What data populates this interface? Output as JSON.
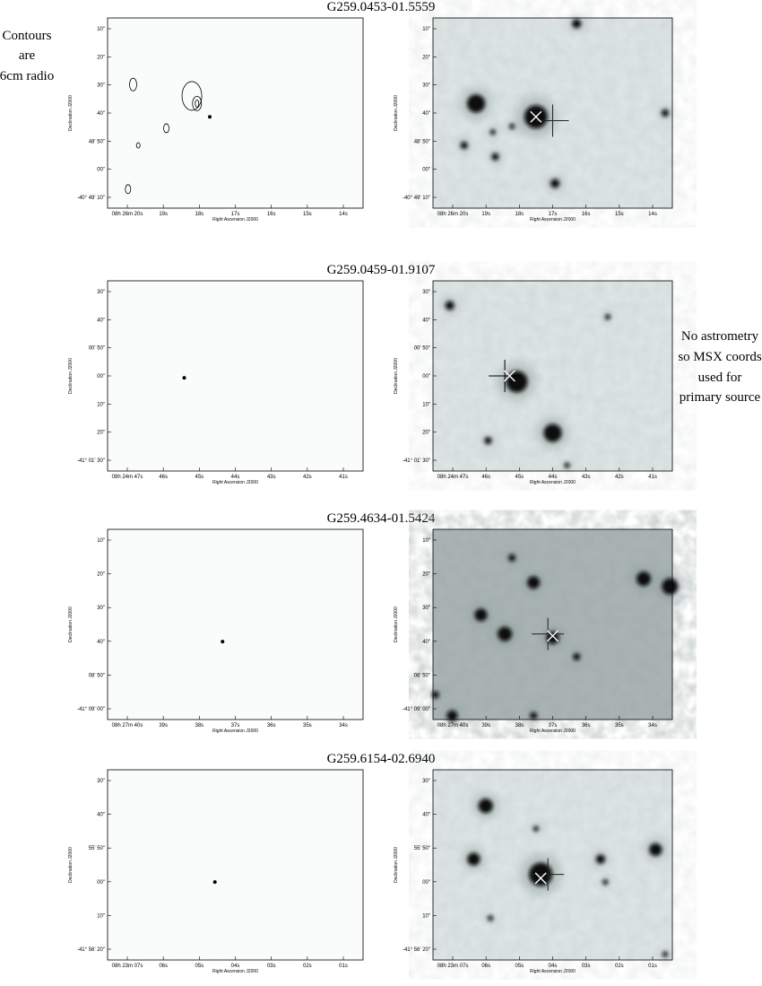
{
  "x_axis_label": "Right Ascension J2000",
  "y_axis_label": "Declination J2000",
  "side_notes": {
    "left": [
      "Contours",
      "are",
      "6cm radio"
    ],
    "right": [
      "No astrometry",
      "so MSX coords",
      "used for",
      "primary source"
    ]
  },
  "rows": [
    {
      "title": "G259.0453-01.5559",
      "yticks": [
        "10\"",
        "20\"",
        "30\"",
        "40\"",
        "48' 50\"",
        "00\"",
        "-40° 49' 10\""
      ],
      "xticks": [
        "08h 26m 20s",
        "19s",
        "18s",
        "17s",
        "16s",
        "15s",
        "14s"
      ]
    },
    {
      "title": "G259.0459-01.9107",
      "yticks": [
        "30\"",
        "40\"",
        "00' 50\"",
        "00\"",
        "10\"",
        "20\"",
        "-41° 01' 30\""
      ],
      "xticks": [
        "08h 24m 47s",
        "46s",
        "45s",
        "44s",
        "43s",
        "42s",
        "41s"
      ]
    },
    {
      "title": "G259.4634-01.5424",
      "yticks": [
        "10\"",
        "20\"",
        "30\"",
        "40\"",
        "08' 50\"",
        "-41° 09' 00\""
      ],
      "xticks": [
        "08h 27m 40s",
        "39s",
        "38s",
        "37s",
        "36s",
        "35s",
        "34s"
      ]
    },
    {
      "title": "G259.6154-02.6940",
      "yticks": [
        "30\"",
        "40\"",
        "55' 50\"",
        "00\"",
        "10\"",
        "-41° 56' 20\""
      ],
      "xticks": [
        "08h 23m 07s",
        "06s",
        "05s",
        "04s",
        "03s",
        "02s",
        "01s"
      ]
    }
  ]
}
